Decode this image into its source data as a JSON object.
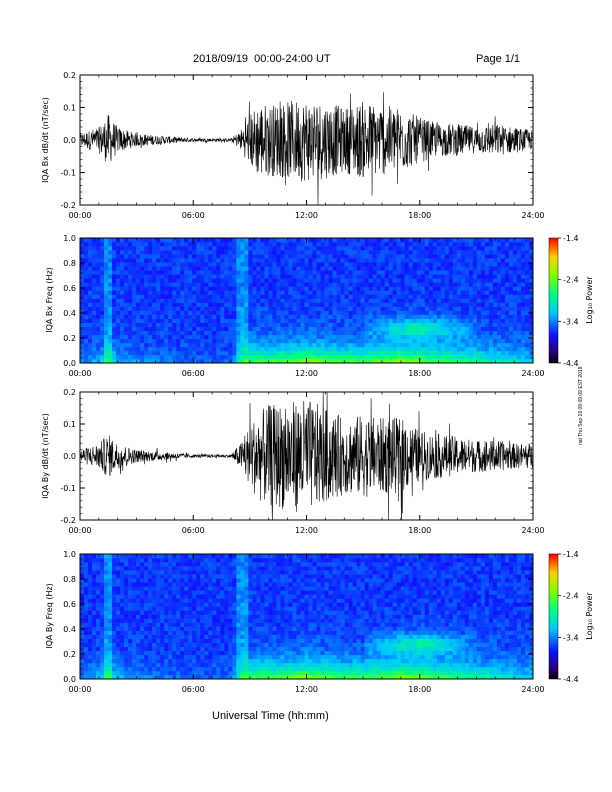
{
  "header": {
    "title": "2018/09/19  00:00-24:00 UT",
    "page": "Page 1/1"
  },
  "xlabel": "Universal Time (hh:mm)",
  "stamp": "nat Thu Sep 19 09:09:09 EST 2019",
  "colors": {
    "background": "#ffffff",
    "trace": "#000000"
  },
  "chart_data": [
    {
      "type": "line",
      "ylabel": "IQA Bx dB/dt (nT/sec)",
      "x_ticks": [
        "00:00",
        "06:00",
        "12:00",
        "18:00",
        "24:00"
      ],
      "y_ticks": [
        "0.2",
        "0.1",
        "0.0",
        "-0.1",
        "-0.2"
      ],
      "xlim": [
        0,
        24
      ],
      "ylim": [
        -0.2,
        0.2
      ],
      "envelope": {
        "x": [
          0,
          1,
          1.5,
          2,
          3,
          4,
          5,
          6,
          7,
          8,
          8.5,
          9,
          9.5,
          10,
          11,
          12,
          13,
          14,
          15,
          16,
          17,
          18,
          19,
          20,
          21,
          22,
          23,
          24
        ],
        "amp": [
          0.02,
          0.04,
          0.08,
          0.04,
          0.02,
          0.015,
          0.01,
          0.005,
          0.005,
          0.005,
          0.03,
          0.08,
          0.12,
          0.11,
          0.12,
          0.13,
          0.12,
          0.1,
          0.12,
          0.11,
          0.1,
          0.07,
          0.05,
          0.05,
          0.04,
          0.05,
          0.04,
          0.03
        ]
      }
    },
    {
      "type": "heatmap",
      "ylabel": "IQA Bx Freq (Hz)",
      "x_ticks": [
        "00:00",
        "06:00",
        "12:00",
        "18:00",
        "24:00"
      ],
      "y_ticks": [
        "1.0",
        "0.8",
        "0.6",
        "0.4",
        "0.2",
        "0.0"
      ],
      "xlim": [
        0,
        24
      ],
      "ylim": [
        0,
        1.0
      ],
      "colorbar": {
        "label": "Log₁₀ Power",
        "ticks": [
          "-1.4",
          "-2.4",
          "-3.4",
          "-4.4"
        ],
        "range": [
          -4.4,
          -1.4
        ]
      }
    },
    {
      "type": "line",
      "ylabel": "IQA By dB/dt (nT/sec)",
      "x_ticks": [
        "00:00",
        "06:00",
        "12:00",
        "18:00",
        "24:00"
      ],
      "y_ticks": [
        "0.2",
        "0.1",
        "0.0",
        "-0.1",
        "-0.2"
      ],
      "xlim": [
        0,
        24
      ],
      "ylim": [
        -0.2,
        0.2
      ],
      "envelope": {
        "x": [
          0,
          1,
          1.5,
          2,
          3,
          4,
          5,
          6,
          7,
          8,
          8.5,
          9,
          9.5,
          10,
          11,
          12,
          13,
          14,
          15,
          16,
          17,
          18,
          19,
          20,
          21,
          22,
          23,
          24
        ],
        "amp": [
          0.02,
          0.04,
          0.07,
          0.04,
          0.02,
          0.015,
          0.01,
          0.005,
          0.005,
          0.005,
          0.04,
          0.1,
          0.14,
          0.16,
          0.17,
          0.18,
          0.15,
          0.12,
          0.13,
          0.12,
          0.12,
          0.08,
          0.07,
          0.06,
          0.05,
          0.05,
          0.04,
          0.04
        ]
      }
    },
    {
      "type": "heatmap",
      "ylabel": "IQA By Freq (Hz)",
      "x_ticks": [
        "00:00",
        "06:00",
        "12:00",
        "18:00",
        "24:00"
      ],
      "y_ticks": [
        "1.0",
        "0.8",
        "0.6",
        "0.4",
        "0.2",
        "0.0"
      ],
      "xlim": [
        0,
        24
      ],
      "ylim": [
        0,
        1.0
      ],
      "colorbar": {
        "label": "Log₁₀ Power",
        "ticks": [
          "-1.4",
          "-2.4",
          "-3.4",
          "-4.4"
        ],
        "range": [
          -4.4,
          -1.4
        ]
      }
    }
  ]
}
